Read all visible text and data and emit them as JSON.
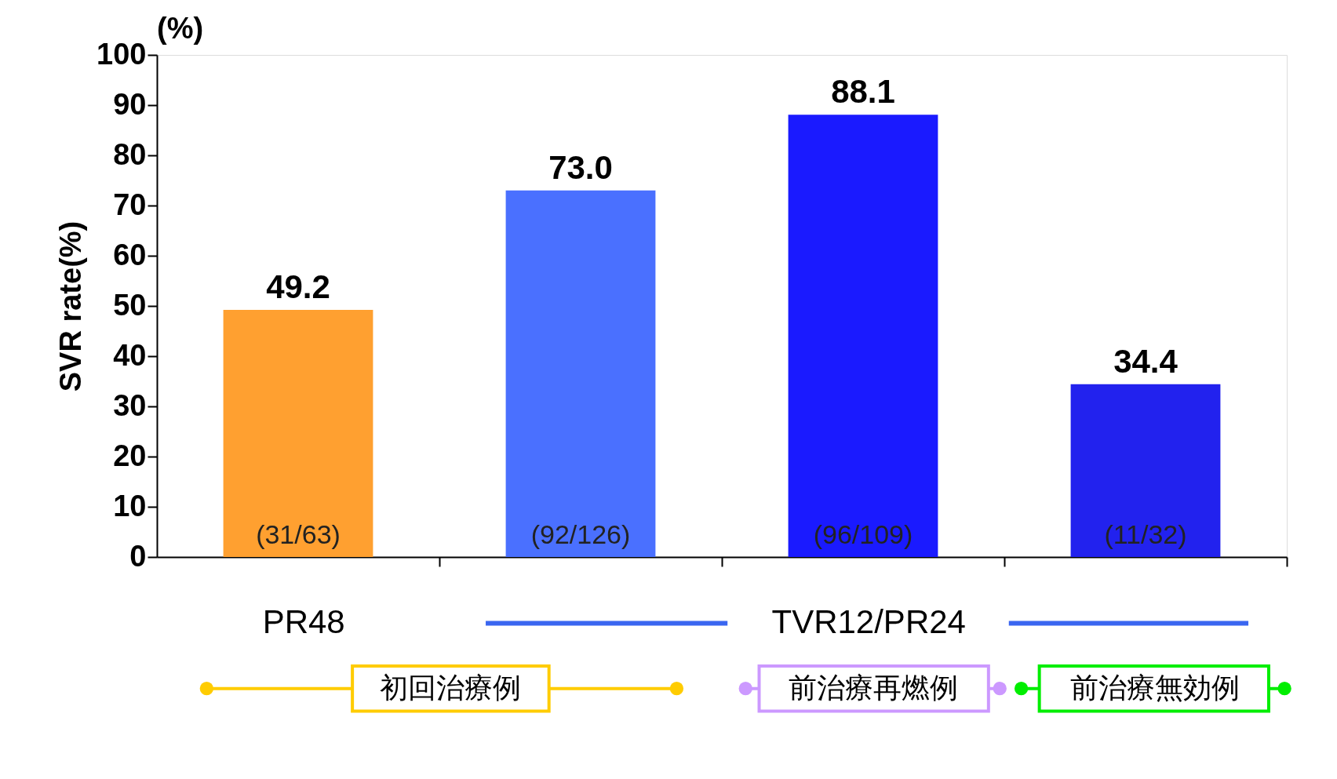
{
  "chart_data": {
    "type": "bar",
    "ylabel": "SVR rate(%)",
    "categories": [
      null,
      null,
      null,
      null
    ],
    "values": [
      49.2,
      73.0,
      88.1,
      34.4
    ],
    "colors": [
      "#ffa030",
      "#4a70ff",
      "#1a1aff",
      "#2222ee"
    ],
    "value_labels": [
      "49.2",
      "73.0",
      "88.1",
      "34.4"
    ],
    "ylim": [
      0,
      100
    ],
    "yticks": [
      0,
      10,
      20,
      30,
      40,
      50,
      60,
      70,
      80,
      90,
      100
    ],
    "grid": false,
    "annotations": [
      "(%)",
      "(31/63)",
      "(92/126)",
      "(96/109)",
      "(11/32)",
      "PR48",
      "TVR12/PR24",
      "初回治療例",
      "前治療再燃例",
      "前治療無効例"
    ]
  }
}
